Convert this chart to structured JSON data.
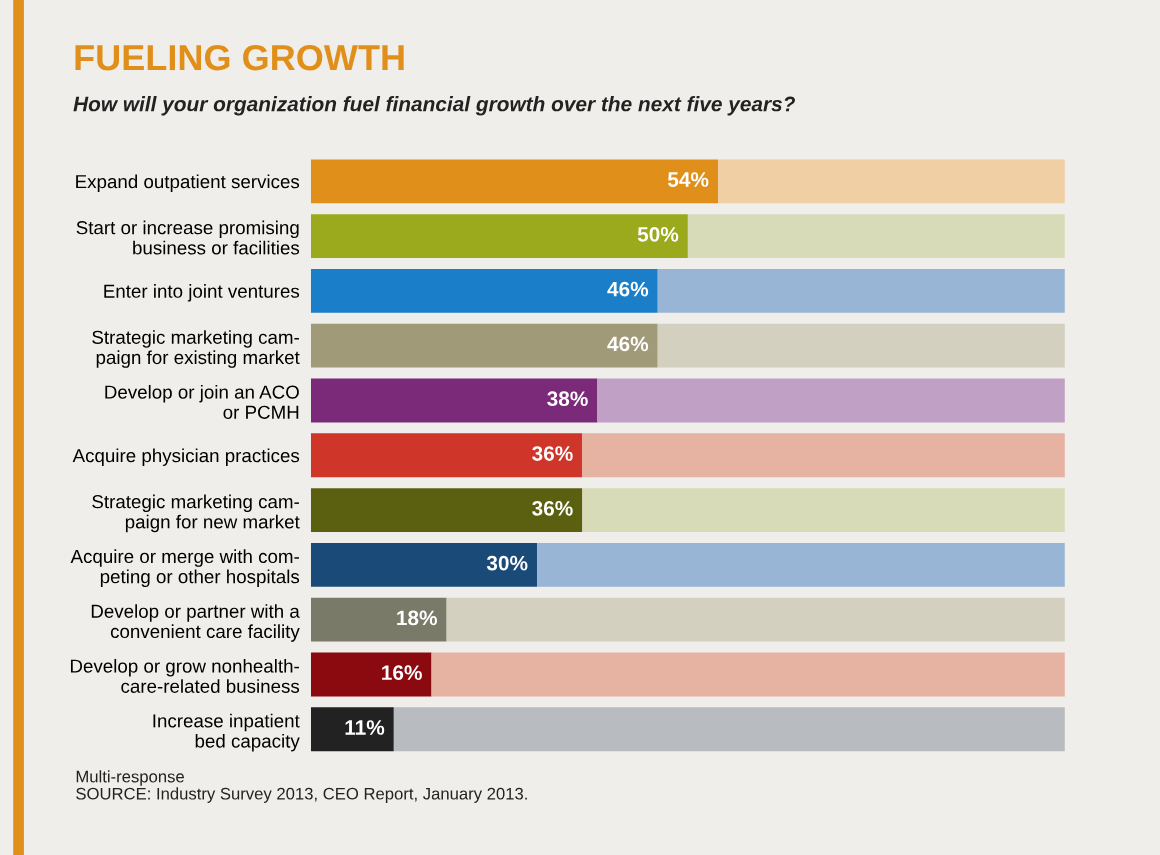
{
  "chart_data": {
    "type": "bar",
    "orientation": "horizontal",
    "stacked": true,
    "title": "FUELING GROWTH",
    "subtitle": "How will your organization fuel financial growth over the next five years?",
    "categories": [
      "Expand outpatient services",
      "Start or increase promising\nbusiness or facilities",
      "Enter into joint ventures",
      "Strategic marketing cam-\npaign for existing market",
      "Develop or join an ACO\nor PCMH",
      "Acquire physician practices",
      "Strategic marketing cam-\npaign for new market",
      "Acquire or merge with com-\npeting or other hospitals",
      "Develop or partner with a\nconvenient care facility",
      "Develop or grow nonhealth-\ncare-related business",
      "Increase inpatient\nbed capacity"
    ],
    "series": [
      {
        "colors": [
          "#e0901a",
          "#9aaa1c",
          "#1a7fc8",
          "#a09a78",
          "#7a2a78",
          "#d0352a",
          "#5a6010",
          "#1a4a78",
          "#7a7a68",
          "#8a0a10",
          "#222222"
        ],
        "values": [
          54,
          50,
          46,
          46,
          38,
          36,
          36,
          30,
          18,
          16,
          11
        ],
        "value_labels": [
          "54%",
          "50%",
          "46%",
          "46%",
          "38%",
          "36%",
          "36%",
          "30%",
          "18%",
          "16%",
          "11%"
        ]
      },
      {
        "colors": [
          "#f0cfa5",
          "#d8dbb8",
          "#98b5d6",
          "#d3d0c0",
          "#c0a0c4",
          "#e6b2a2",
          "#d8dbb8",
          "#98b5d6",
          "#d3d0c0",
          "#e6b2a2",
          "#b8bcc0"
        ],
        "values": [
          46,
          50,
          54,
          54,
          62,
          64,
          64,
          70,
          82,
          84,
          89
        ]
      }
    ],
    "annotations": [
      "Multi-response",
      "SOURCE: Industry Survey 2013, CEO Report, January 2013."
    ]
  }
}
